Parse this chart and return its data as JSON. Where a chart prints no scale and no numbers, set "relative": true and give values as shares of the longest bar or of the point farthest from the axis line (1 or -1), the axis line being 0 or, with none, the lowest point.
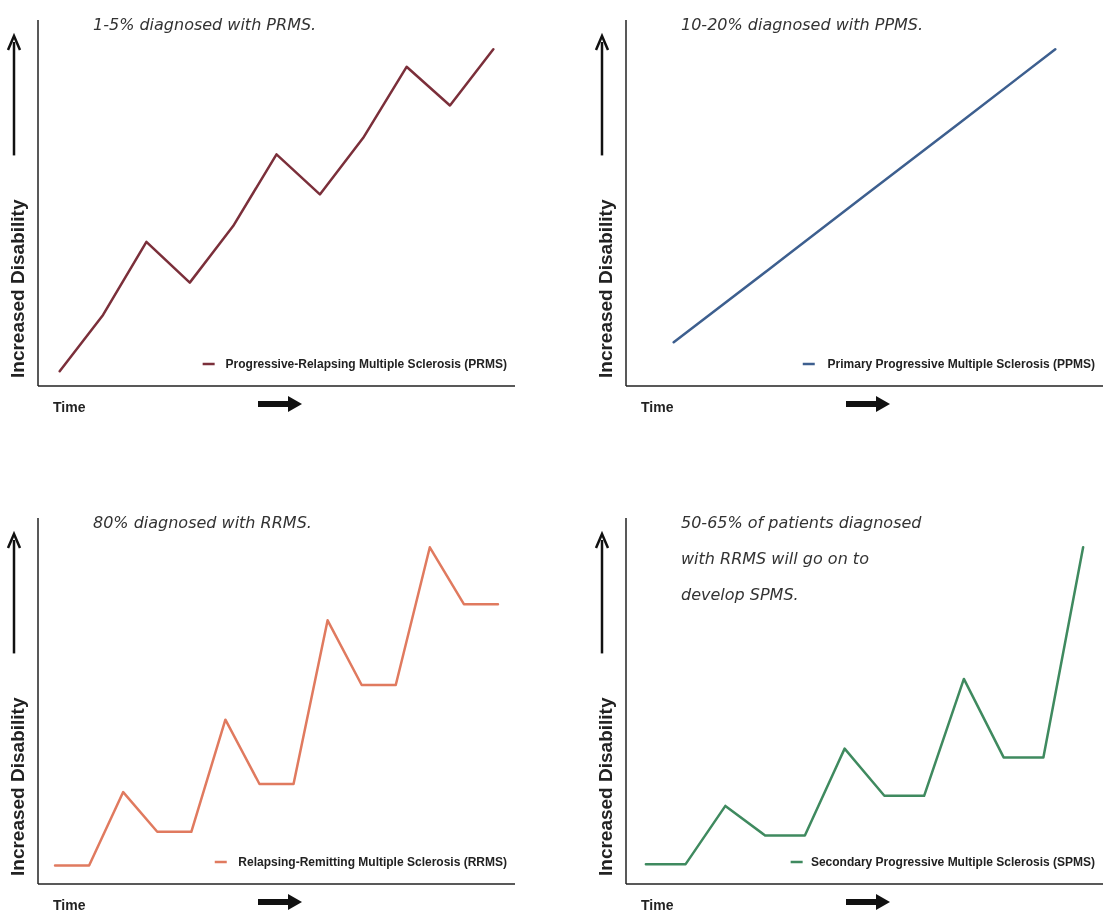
{
  "chart_data": [
    {
      "type": "line",
      "title": "1-5% diagnosed with PRMS.",
      "ylabel": "Increased Disability",
      "xlabel": "Time",
      "relative": true,
      "legend": "bottom right",
      "categories": [
        null,
        null,
        null,
        null,
        null,
        null,
        null,
        null,
        null,
        null,
        null
      ],
      "series": [
        {
          "name": "Progressive-Relapsing Multiple Sclerosis (PRMS)",
          "color": "#7b2f3a",
          "values": [
            0.044,
            0.211,
            0.428,
            0.307,
            0.475,
            0.688,
            0.569,
            0.737,
            0.948,
            0.833,
            1
          ]
        }
      ]
    },
    {
      "type": "line",
      "title": "10-20% diagnosed with PPMS.",
      "ylabel": "Increased Disability",
      "xlabel": "Time",
      "relative": true,
      "legend": "bottom right",
      "categories": [
        null,
        null,
        null,
        null,
        null
      ],
      "series": [
        {
          "name": "Primary Progressive Multiple Sclerosis (PPMS)",
          "color": "#3d5f8f",
          "values": [
            0.13,
            0.347,
            0.565,
            0.782,
            1
          ]
        }
      ]
    },
    {
      "type": "line",
      "title": "80% diagnosed with RRMS.",
      "ylabel": "Increased Disability",
      "xlabel": "Time",
      "relative": true,
      "legend": "bottom right",
      "categories": [
        null,
        null,
        null,
        null,
        null,
        null,
        null,
        null,
        null,
        null,
        null,
        null,
        null,
        null
      ],
      "series": [
        {
          "name": "Relapsing-Remitting Multiple Sclerosis (RRMS)",
          "color": "#e07a5f",
          "values": [
            0.055,
            0.055,
            0.273,
            0.155,
            0.155,
            0.488,
            0.297,
            0.297,
            0.783,
            0.591,
            0.591,
            1,
            0.831,
            0.831
          ]
        }
      ]
    },
    {
      "type": "line",
      "title": "50-65% of patients diagnosed with RRMS will go on to develop SPMS.",
      "ylabel": "Increased Disability",
      "xlabel": "Time",
      "relative": true,
      "legend": "bottom right",
      "categories": [
        null,
        null,
        null,
        null,
        null,
        null,
        null,
        null,
        null,
        null,
        null,
        null
      ],
      "series": [
        {
          "name": "Secondary Progressive Multiple Sclerosis (SPMS)",
          "color": "#3f8a5f",
          "values": [
            0.059,
            0.059,
            0.232,
            0.144,
            0.144,
            0.402,
            0.262,
            0.262,
            0.609,
            0.376,
            0.376,
            1
          ]
        }
      ]
    }
  ]
}
